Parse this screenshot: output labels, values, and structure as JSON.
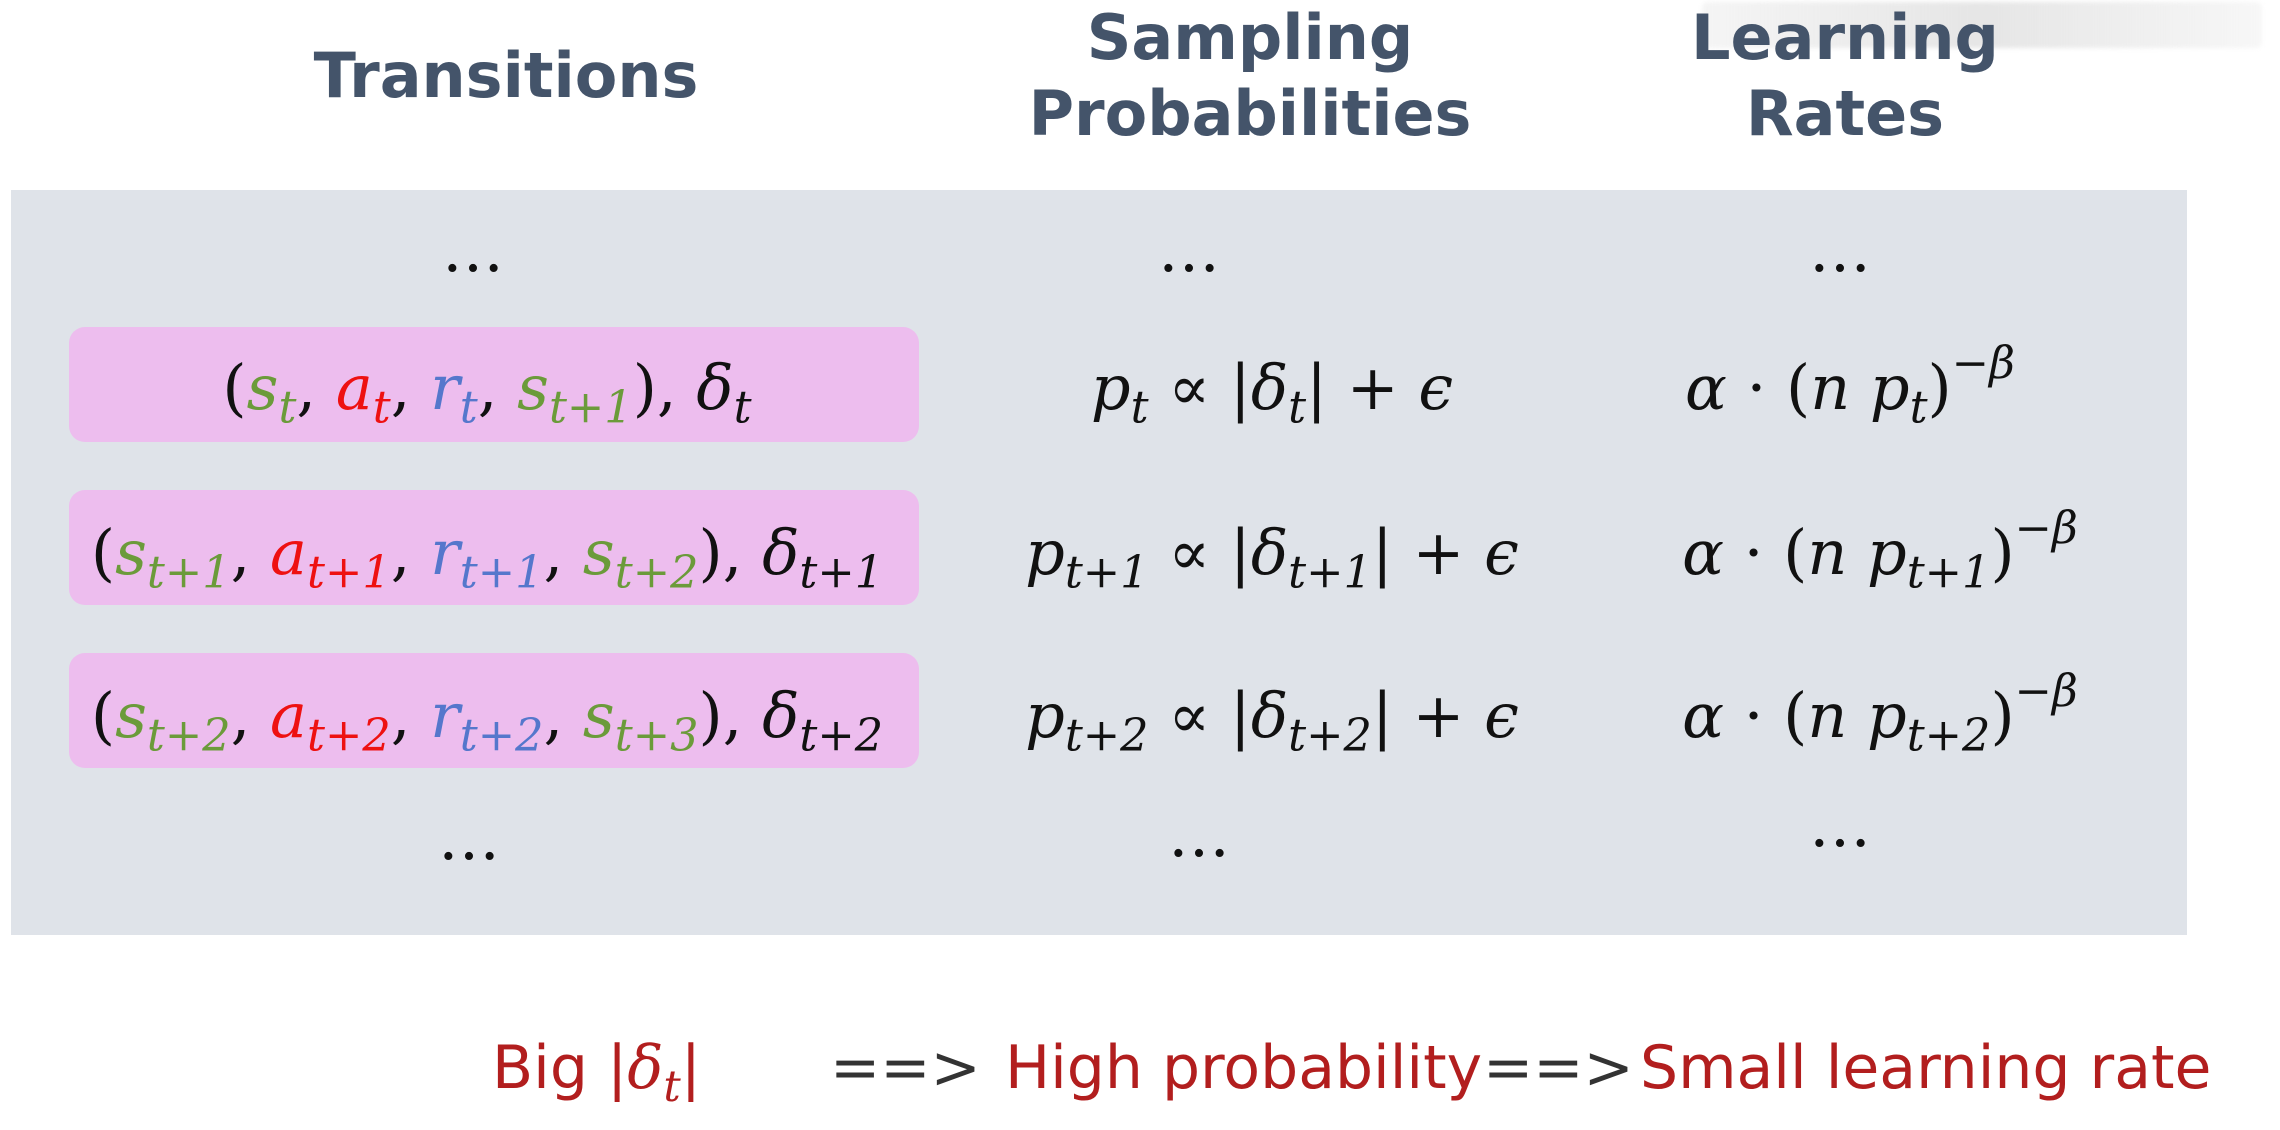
{
  "headers": {
    "transitions": [
      "Transitions"
    ],
    "sampling": [
      "Sampling",
      "Probabilities"
    ],
    "learning": [
      "Learning",
      "Rates"
    ]
  },
  "ellipsis": "…",
  "rows": [
    {
      "state": "s",
      "action": "a",
      "reward": "r",
      "next_state": "s",
      "delta": "δ",
      "i0": "t",
      "i1": "t+1",
      "prob_symbol": "p",
      "proportional": "∝",
      "plus": "+",
      "epsilon": "ϵ",
      "alpha": "α",
      "cdot": "·",
      "n": "n",
      "exponent": "−β"
    },
    {
      "state": "s",
      "action": "a",
      "reward": "r",
      "next_state": "s",
      "delta": "δ",
      "i0": "t+1",
      "i1": "t+2",
      "prob_symbol": "p",
      "proportional": "∝",
      "plus": "+",
      "epsilon": "ϵ",
      "alpha": "α",
      "cdot": "·",
      "n": "n",
      "exponent": "−β"
    },
    {
      "state": "s",
      "action": "a",
      "reward": "r",
      "next_state": "s",
      "delta": "δ",
      "i0": "t+2",
      "i1": "t+3",
      "prob_symbol": "p",
      "proportional": "∝",
      "plus": "+",
      "epsilon": "ϵ",
      "alpha": "α",
      "cdot": "·",
      "n": "n",
      "exponent": "−β"
    }
  ],
  "bottom": {
    "big": "Big",
    "delta": "δ",
    "sub": "t",
    "arrow": "==>",
    "high": "High probability",
    "small": "Small learning rate"
  },
  "colors": {
    "header": "#44546a",
    "panel": "#dfe3e9",
    "highlight": "#edbdee",
    "state": "#6b9b3a",
    "action": "#ee1111",
    "reward": "#5577cc",
    "bottom_text": "#b21e1e"
  }
}
